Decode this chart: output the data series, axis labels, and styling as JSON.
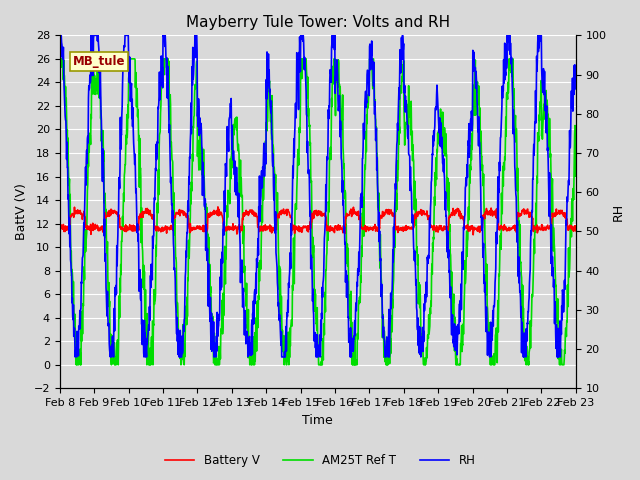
{
  "title": "Mayberry Tule Tower: Volts and RH",
  "xlabel": "Time",
  "ylabel_left": "BattV (V)",
  "ylabel_right": "RH",
  "station_label": "MB_tule",
  "ylim_left": [
    -2,
    28
  ],
  "ylim_right": [
    10,
    100
  ],
  "yticks_left": [
    -2,
    0,
    2,
    4,
    6,
    8,
    10,
    12,
    14,
    16,
    18,
    20,
    22,
    24,
    26,
    28
  ],
  "yticks_right": [
    10,
    20,
    30,
    40,
    50,
    60,
    70,
    80,
    90,
    100
  ],
  "xtick_labels": [
    "Feb 8",
    "Feb 9",
    "Feb 10",
    "Feb 11",
    "Feb 12",
    "Feb 13",
    "Feb 14",
    "Feb 15",
    "Feb 16",
    "Feb 17",
    "Feb 18",
    "Feb 19",
    "Feb 20",
    "Feb 21",
    "Feb 22",
    "Feb 23"
  ],
  "battery_color": "#ff0000",
  "am25t_color": "#00dd00",
  "rh_color": "#0000ff",
  "battery_linewidth": 1.2,
  "am25t_linewidth": 1.2,
  "rh_linewidth": 1.2,
  "legend_labels": [
    "Battery V",
    "AM25T Ref T",
    "RH"
  ],
  "background_color": "#d9d9d9",
  "plot_bg_color": "#d9d9d9",
  "grid_color": "#ffffff",
  "title_fontsize": 11,
  "label_fontsize": 9,
  "tick_fontsize": 8,
  "station_label_color": "#990000"
}
